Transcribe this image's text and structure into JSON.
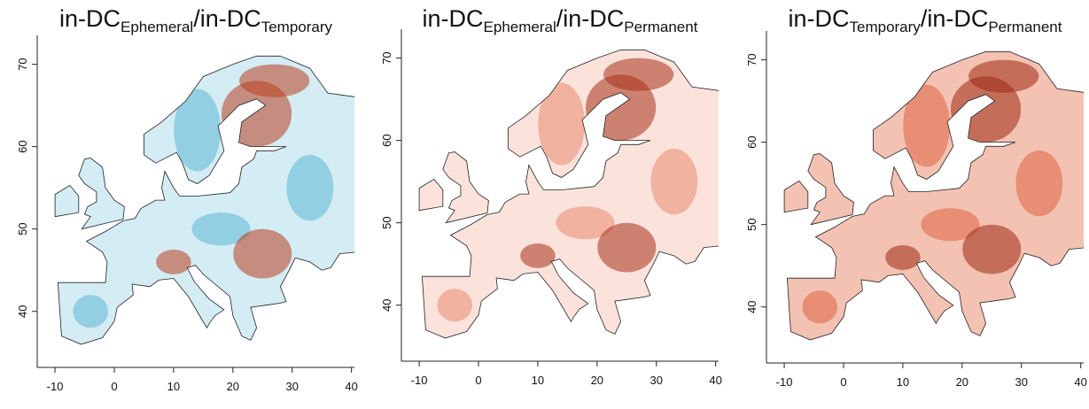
{
  "chart_data": [
    {
      "type": "map",
      "title_parts": [
        "in-DC",
        "Ephemeral",
        "/in-DC",
        "Temporary"
      ],
      "xlim": [
        -13,
        40.5
      ],
      "ylim": [
        33.2,
        73.5
      ],
      "xticks": [
        -10,
        0,
        10,
        20,
        30,
        40
      ],
      "yticks": [
        40,
        50,
        60,
        70
      ],
      "land_color": "#d4ecf4",
      "accent_color": "#b8401f",
      "second_color": "#5bb8d6"
    },
    {
      "type": "map",
      "title_parts": [
        "in-DC",
        "Ephemeral",
        "/in-DC",
        "Permanent"
      ],
      "xlim": [
        -13,
        40.5
      ],
      "ylim": [
        33.2,
        73.5
      ],
      "xticks": [
        -10,
        0,
        10,
        20,
        30,
        40
      ],
      "yticks": [
        40,
        50,
        60,
        70
      ],
      "land_color": "#fbe3dc",
      "accent_color": "#a8321a",
      "second_color": "#e98a70"
    },
    {
      "type": "map",
      "title_parts": [
        "in-DC",
        "Temporary",
        "/in-DC",
        "Permanent"
      ],
      "xlim": [
        -13,
        40.5
      ],
      "ylim": [
        33.2,
        73.5
      ],
      "xticks": [
        -10,
        0,
        10,
        20,
        30,
        40
      ],
      "yticks": [
        40,
        50,
        60,
        70
      ],
      "land_color": "#f4c2b2",
      "accent_color": "#9c2a12",
      "second_color": "#dc6444"
    }
  ]
}
